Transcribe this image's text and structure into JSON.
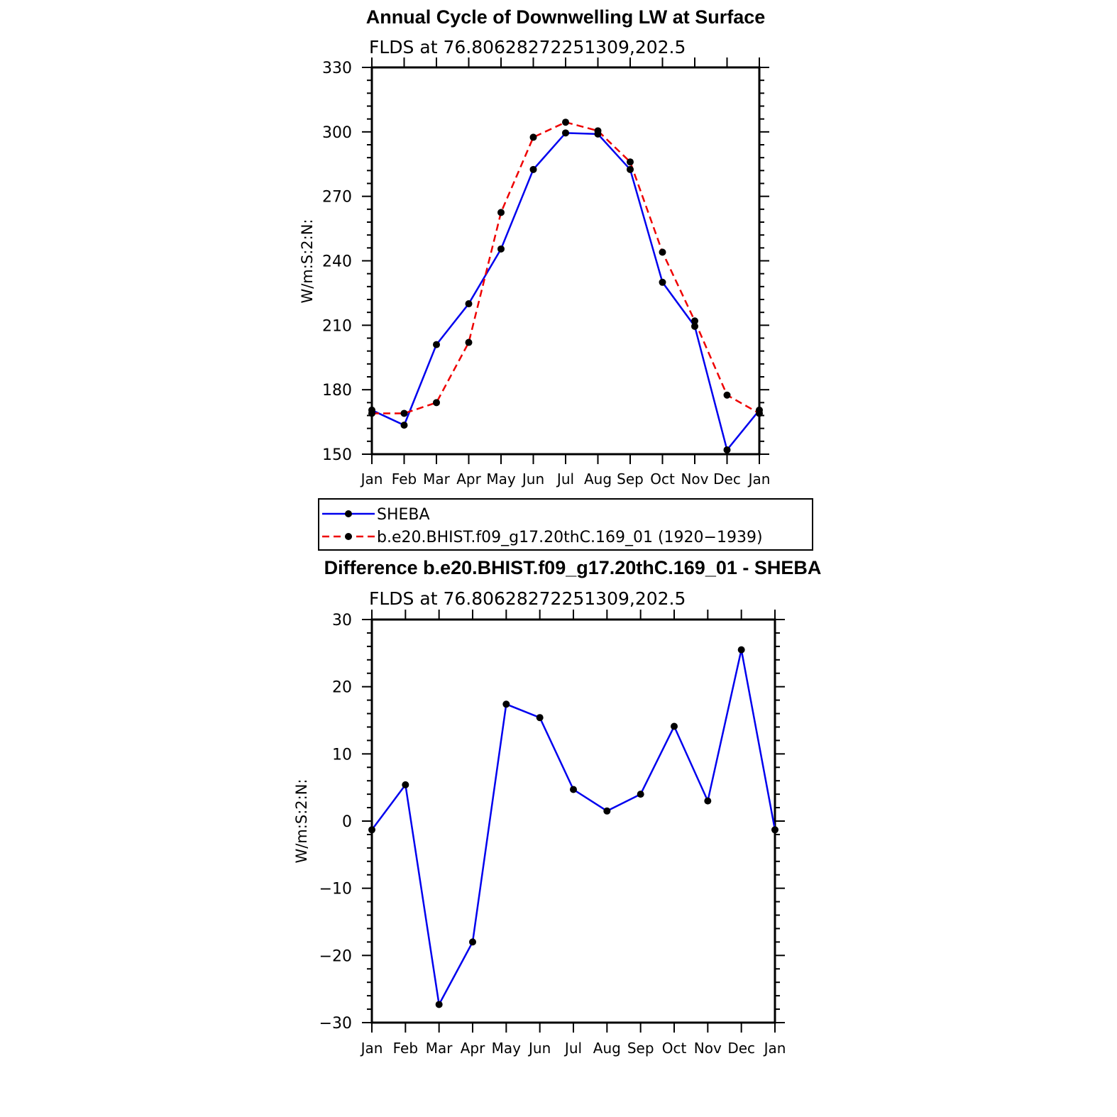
{
  "chart_data": [
    {
      "type": "line",
      "title": "Annual Cycle of Downwelling LW at Surface",
      "subtitle": "FLDS at 76.80628272251309,202.5",
      "ylabel": "W/m:S:2:N:",
      "xlabel": "",
      "categories": [
        "Jan",
        "Feb",
        "Mar",
        "Apr",
        "May",
        "Jun",
        "Jul",
        "Aug",
        "Sep",
        "Oct",
        "Nov",
        "Dec",
        "Jan"
      ],
      "ylim": [
        150,
        330
      ],
      "yticks": [
        150,
        180,
        210,
        240,
        270,
        300,
        330
      ],
      "series": [
        {
          "name": "SHEBA",
          "color": "#0000ee",
          "dash": "solid",
          "values": [
            170.5,
            163.5,
            201,
            220,
            245.5,
            282.5,
            299.5,
            299,
            282.5,
            230,
            209.5,
            152,
            170.5
          ]
        },
        {
          "name": "b.e20.BHIST.f09_g17.20thC.169_01 (1920−1939)",
          "color": "#ee0000",
          "dash": "dashed",
          "values": [
            169,
            169,
            174,
            202,
            262.5,
            297.5,
            304.5,
            300.5,
            286,
            244,
            212,
            177.5,
            169
          ]
        }
      ],
      "legend": "below"
    },
    {
      "type": "line",
      "title": "Difference b.e20.BHIST.f09_g17.20thC.169_01 - SHEBA",
      "subtitle": "FLDS at 76.80628272251309,202.5",
      "ylabel": "W/m:S:2:N:",
      "xlabel": "",
      "categories": [
        "Jan",
        "Feb",
        "Mar",
        "Apr",
        "May",
        "Jun",
        "Jul",
        "Aug",
        "Sep",
        "Oct",
        "Nov",
        "Dec",
        "Jan"
      ],
      "ylim": [
        -30,
        30
      ],
      "yticks": [
        -30,
        -20,
        -10,
        0,
        10,
        20,
        30
      ],
      "ytick_labels": [
        "−30",
        "−20",
        "−10",
        "0",
        "10",
        "20",
        "30"
      ],
      "series": [
        {
          "color": "#0000ee",
          "dash": "solid",
          "values": [
            -1.3,
            5.4,
            -27.3,
            -18,
            17.4,
            15.4,
            4.7,
            1.5,
            4,
            14.1,
            3,
            25.5,
            -1.3
          ]
        }
      ]
    }
  ]
}
